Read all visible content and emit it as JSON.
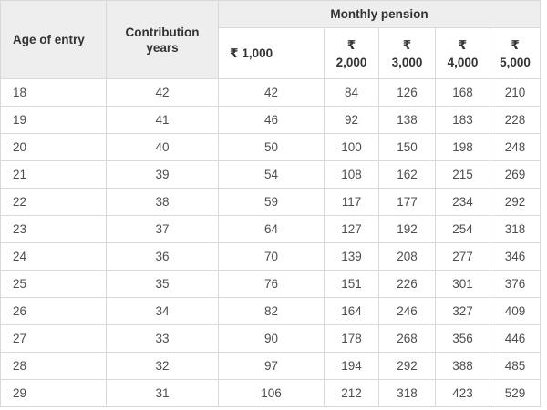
{
  "chart_data": {
    "type": "table",
    "title": "Monthly pension",
    "columns": [
      "Age of entry",
      "Contribution years",
      "₹ 1,000",
      "₹ 2,000",
      "₹ 3,000",
      "₹ 4,000",
      "₹ 5,000"
    ],
    "rows": [
      [
        18,
        42,
        42,
        84,
        126,
        168,
        210
      ],
      [
        19,
        41,
        46,
        92,
        138,
        183,
        228
      ],
      [
        20,
        40,
        50,
        100,
        150,
        198,
        248
      ],
      [
        21,
        39,
        54,
        108,
        162,
        215,
        269
      ],
      [
        22,
        38,
        59,
        117,
        177,
        234,
        292
      ],
      [
        23,
        37,
        64,
        127,
        192,
        254,
        318
      ],
      [
        24,
        36,
        70,
        139,
        208,
        277,
        346
      ],
      [
        25,
        35,
        76,
        151,
        226,
        301,
        376
      ],
      [
        26,
        34,
        82,
        164,
        246,
        327,
        409
      ],
      [
        27,
        33,
        90,
        178,
        268,
        356,
        446
      ],
      [
        28,
        32,
        97,
        194,
        292,
        388,
        485
      ],
      [
        29,
        31,
        106,
        212,
        318,
        423,
        529
      ]
    ]
  },
  "table": {
    "col_age_label": "Age of entry",
    "col_years_label": "Contribution years",
    "group_label": "Monthly pension",
    "pension_columns": [
      {
        "symbol": "₹",
        "amount": "1,000"
      },
      {
        "symbol": "₹",
        "amount": "2,000"
      },
      {
        "symbol": "₹",
        "amount": "3,000"
      },
      {
        "symbol": "₹",
        "amount": "4,000"
      },
      {
        "symbol": "₹",
        "amount": "5,000"
      }
    ]
  },
  "colors": {
    "header_bg": "#eeeeee",
    "border": "#d9d9d9",
    "header_text": "#333333",
    "cell_text": "#4d4d4d"
  }
}
